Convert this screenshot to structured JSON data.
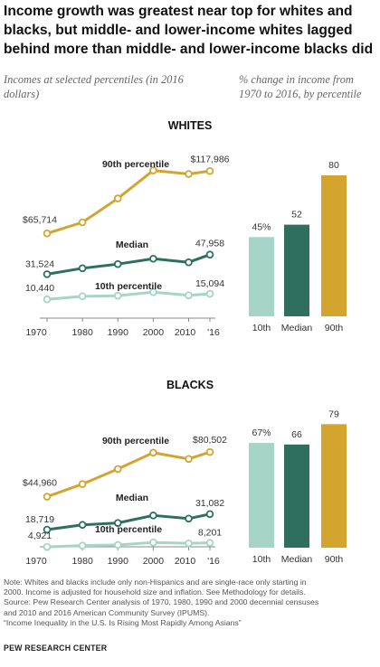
{
  "title": "Income growth was greatest near top for whites and blacks, but middle- and lower-income whites lagged behind more than middle- and lower-income blacks did",
  "subtitle_left": "Incomes at selected percentiles (in 2016 dollars)",
  "subtitle_right": "% change in income from 1970 to 2016, by percentile",
  "colors": {
    "p90": "#d3a52f",
    "median": "#2e6f5e",
    "p10": "#a6d5c8"
  },
  "chart_data": [
    {
      "type": "line",
      "panel": "WHITES",
      "x": [
        1970,
        1980,
        1990,
        2000,
        2010,
        2016
      ],
      "x_tick_labels": [
        "1970",
        "1980",
        "1990",
        "2000",
        "2010",
        "'16"
      ],
      "series": [
        {
          "name": "90th percentile",
          "key": "p90",
          "values": [
            65714,
            75000,
            95000,
            118500,
            115500,
            117986
          ],
          "end_labels": [
            "$65,714",
            "$117,986"
          ]
        },
        {
          "name": "Median",
          "key": "median",
          "values": [
            31524,
            36500,
            40000,
            44500,
            41500,
            47958
          ],
          "end_labels": [
            "31,524",
            "47,958"
          ]
        },
        {
          "name": "10th percentile",
          "key": "p10",
          "values": [
            10440,
            13000,
            13500,
            16500,
            13800,
            15094
          ],
          "end_labels": [
            "10,440",
            "15,094"
          ]
        }
      ],
      "ylim": [
        0,
        135000
      ]
    },
    {
      "type": "bar",
      "panel": "WHITES",
      "categories": [
        "10th",
        "Median",
        "90th"
      ],
      "values": [
        45,
        52,
        80
      ],
      "data_labels": [
        "45%",
        "52",
        "80"
      ],
      "ylim": [
        0,
        100
      ]
    },
    {
      "type": "line",
      "panel": "BLACKS",
      "x": [
        1970,
        1980,
        1990,
        2000,
        2010,
        2016
      ],
      "x_tick_labels": [
        "1970",
        "1980",
        "1990",
        "2000",
        "2010",
        "'16"
      ],
      "series": [
        {
          "name": "90th percentile",
          "key": "p90",
          "values": [
            44960,
            55000,
            67000,
            80000,
            75000,
            80502
          ],
          "end_labels": [
            "$44,960",
            "$80,502"
          ]
        },
        {
          "name": "Median",
          "key": "median",
          "values": [
            18719,
            22500,
            24000,
            30000,
            27500,
            31082
          ],
          "end_labels": [
            "18,719",
            "31,082"
          ]
        },
        {
          "name": "10th percentile",
          "key": "p10",
          "values": [
            4921,
            6000,
            6500,
            8500,
            7800,
            8201
          ],
          "end_labels": [
            "4,921",
            "8,201"
          ]
        }
      ],
      "ylim": [
        0,
        100000
      ]
    },
    {
      "type": "bar",
      "panel": "BLACKS",
      "categories": [
        "10th",
        "Median",
        "90th"
      ],
      "values": [
        67,
        66,
        79
      ],
      "data_labels": [
        "67%",
        "66",
        "79"
      ],
      "ylim": [
        0,
        100
      ]
    }
  ],
  "notes": [
    "Note:  Whites and blacks include only non-Hispanics and are single-race only starting in",
    "2000. Income is adjusted for household size and inflation. See Methodology for details.",
    "Source: Pew Research Center analysis of 1970, 1980, 1990 and 2000 decennial censuses",
    "and 2010 and 2016 American Community Survey (IPUMS).",
    "“Income Inequality in the U.S. Is Rising Most Rapidly Among Asians”"
  ],
  "source": "PEW RESEARCH CENTER"
}
